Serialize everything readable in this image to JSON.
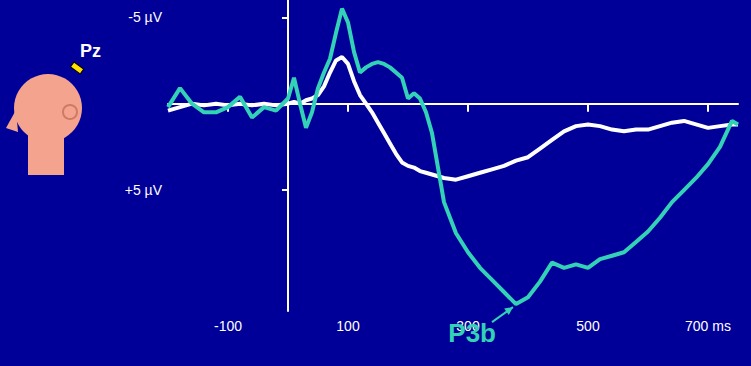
{
  "chart_data": {
    "type": "line",
    "electrode": "Pz",
    "x": [
      -200,
      -180,
      -160,
      -140,
      -120,
      -100,
      -80,
      -60,
      -40,
      -20,
      0,
      10,
      20,
      30,
      40,
      50,
      60,
      70,
      80,
      90,
      100,
      110,
      120,
      130,
      140,
      150,
      160,
      170,
      180,
      190,
      200,
      210,
      220,
      230,
      240,
      260,
      280,
      300,
      320,
      340,
      360,
      380,
      400,
      420,
      440,
      460,
      480,
      500,
      520,
      540,
      560,
      580,
      600,
      620,
      640,
      660,
      680,
      700,
      720,
      740,
      750
    ],
    "series": [
      {
        "color": "#ffffff",
        "values": [
          0.4,
          0.2,
          0.0,
          0.1,
          0.0,
          0.1,
          0.0,
          0.1,
          0.0,
          0.1,
          0.0,
          -0.1,
          0.0,
          -0.2,
          -0.3,
          -0.5,
          -1.0,
          -1.8,
          -2.5,
          -2.7,
          -2.3,
          -1.3,
          -0.5,
          0.0,
          0.5,
          1.1,
          1.7,
          2.3,
          2.9,
          3.4,
          3.6,
          3.7,
          3.9,
          4.0,
          4.1,
          4.3,
          4.4,
          4.2,
          4.0,
          3.8,
          3.6,
          3.3,
          3.1,
          2.6,
          2.1,
          1.6,
          1.3,
          1.2,
          1.3,
          1.5,
          1.6,
          1.5,
          1.5,
          1.3,
          1.1,
          1.0,
          1.2,
          1.4,
          1.3,
          1.2,
          1.2
        ]
      },
      {
        "color": "#33d1b5",
        "values": [
          0.2,
          -0.9,
          0.0,
          0.5,
          0.5,
          0.2,
          -0.4,
          0.8,
          0.2,
          0.4,
          -0.3,
          -1.5,
          0.0,
          1.4,
          0.5,
          -0.9,
          -1.8,
          -2.6,
          -4.1,
          -5.5,
          -4.7,
          -3.0,
          -1.8,
          -2.1,
          -2.3,
          -2.4,
          -2.3,
          -2.1,
          -1.8,
          -1.5,
          -0.3,
          -0.6,
          -0.3,
          0.5,
          1.7,
          5.7,
          7.5,
          8.6,
          9.5,
          10.2,
          10.9,
          11.6,
          11.2,
          10.3,
          9.2,
          9.5,
          9.3,
          9.5,
          9.0,
          8.8,
          8.6,
          8.0,
          7.4,
          6.6,
          5.7,
          5.0,
          4.3,
          3.5,
          2.5,
          1.0,
          1.2
        ]
      }
    ],
    "xlim": [
      -200,
      750
    ],
    "xticks": [
      -100,
      100,
      300,
      500,
      {
        "value": 700,
        "label": "700 ms"
      }
    ],
    "ylim": [
      12,
      -6
    ],
    "yticks": [
      {
        "value": -5,
        "label": "-5 µV"
      },
      {
        "value": 5,
        "label": "+5 µV"
      }
    ],
    "grid": false,
    "annotations": [
      {
        "text": "P3b",
        "x": 380,
        "y": 11.6,
        "color": "#33d1b5"
      }
    ]
  }
}
